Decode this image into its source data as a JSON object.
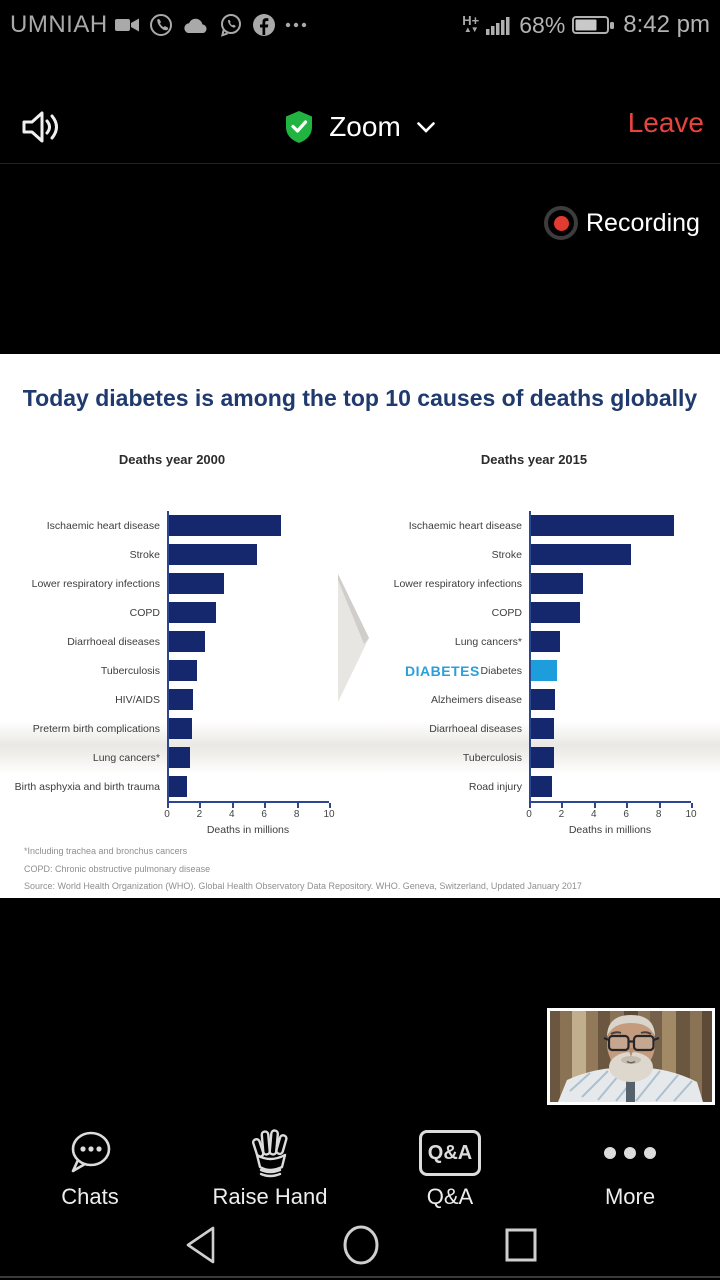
{
  "status_bar": {
    "carrier": "UMNIAH",
    "network_type": "H+",
    "network_arrows": "▲▼",
    "battery_percent": "68%",
    "time": "8:42 pm"
  },
  "meeting_bar": {
    "title": "Zoom",
    "leave_label": "Leave"
  },
  "recording_label": "Recording",
  "slide": {
    "title": "Today diabetes is among the top 10 causes of deaths globally",
    "diabetes_callout": "DIABETES",
    "footnotes": [
      "*Including trachea and bronchus cancers",
      "COPD: Chronic obstructive pulmonary disease",
      "Source: World Health Organization (WHO). Global Health Observatory Data Repository. WHO. Geneva, Switzerland, Updated January 2017"
    ]
  },
  "chart_data": [
    {
      "type": "bar",
      "orientation": "horizontal",
      "title": "Deaths year 2000",
      "categories": [
        "Ischaemic heart disease",
        "Stroke",
        "Lower respiratory infections",
        "COPD",
        "Diarrhoeal diseases",
        "Tuberculosis",
        "HIV/AIDS",
        "Preterm birth complications",
        "Lung cancers*",
        "Birth asphyxia and birth trauma"
      ],
      "values": [
        6.9,
        5.4,
        3.4,
        2.9,
        2.2,
        1.7,
        1.5,
        1.4,
        1.3,
        1.1
      ],
      "xlabel": "Deaths in millions",
      "xlim": [
        0,
        10
      ],
      "xticks": [
        0,
        2,
        4,
        6,
        8,
        10
      ],
      "grid": false,
      "bar_color": "#16286d"
    },
    {
      "type": "bar",
      "orientation": "horizontal",
      "title": "Deaths year 2015",
      "categories": [
        "Ischaemic heart disease",
        "Stroke",
        "Lower respiratory infections",
        "COPD",
        "Lung cancers*",
        "Diabetes",
        "Alzheimers disease",
        "Diarrhoeal diseases",
        "Tuberculosis",
        "Road injury"
      ],
      "values": [
        8.8,
        6.2,
        3.2,
        3.0,
        1.8,
        1.6,
        1.5,
        1.4,
        1.4,
        1.3
      ],
      "xlabel": "Deaths in millions",
      "xlim": [
        0,
        10
      ],
      "xticks": [
        0,
        2,
        4,
        6,
        8,
        10
      ],
      "grid": false,
      "bar_color": "#16286d",
      "highlight_index": 5,
      "highlight_color": "#1d9ddb"
    }
  ],
  "toolbar": {
    "items": [
      {
        "label": "Chats",
        "icon": "chat-bubble-icon"
      },
      {
        "label": "Raise Hand",
        "icon": "raise-hand-icon"
      },
      {
        "label": "Q&A",
        "icon": "qa-icon",
        "icon_text": "Q&A"
      },
      {
        "label": "More",
        "icon": "more-dots-icon"
      }
    ]
  },
  "colors": {
    "accent_blue": "#29a0dc",
    "title_navy": "#203a6e",
    "leave_red": "#e8443e",
    "shield_green": "#22b440",
    "record_red": "#e23b32",
    "axis_navy": "#2c4691"
  }
}
